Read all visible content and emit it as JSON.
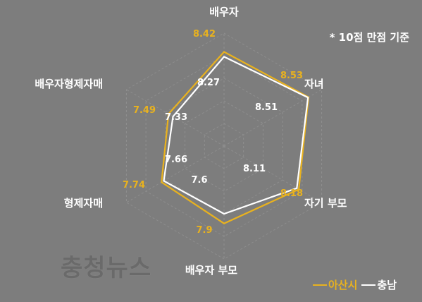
{
  "chart_data": {
    "type": "radar",
    "scale_note": "* 10점 만점 기준",
    "max": 10,
    "categories": [
      "배우자",
      "자녀",
      "자기 부모",
      "배우자 부모",
      "형제자매",
      "배우자형제자매"
    ],
    "series": [
      {
        "name": "아산시",
        "values": [
          8.42,
          8.53,
          8.18,
          7.9,
          7.74,
          7.49
        ],
        "color": "#e9b21e"
      },
      {
        "name": "충남",
        "values": [
          8.27,
          8.51,
          8.11,
          7.6,
          7.66,
          7.33
        ],
        "color": "#ffffff"
      }
    ]
  },
  "watermark": "충청뉴스",
  "colors": {
    "background": "#7d7d7d",
    "grid": "#8c8c8c"
  }
}
